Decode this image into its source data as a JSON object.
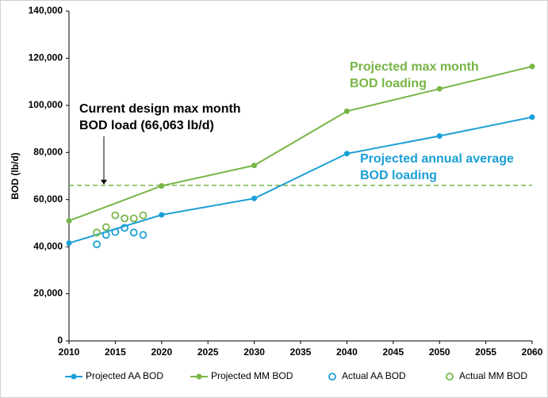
{
  "chart_data": {
    "type": "line",
    "y_label": "BOD (lb/d)",
    "xlim": [
      2010,
      2060
    ],
    "xticks": [
      2010,
      2015,
      2020,
      2025,
      2030,
      2035,
      2040,
      2045,
      2050,
      2055,
      2060
    ],
    "ylim": [
      0,
      140000
    ],
    "yticks": [
      0,
      {
        "value": 20000,
        "label": "20,000"
      },
      {
        "value": 40000,
        "label": "40,000"
      },
      {
        "value": 60000,
        "label": "60,000"
      },
      {
        "value": 80000,
        "label": "80,000"
      },
      {
        "value": 100000,
        "label": "100,000"
      },
      {
        "value": 120000,
        "label": "120,000"
      },
      {
        "value": 140000,
        "label": "140,000"
      }
    ],
    "series": [
      {
        "name": "Projected AA BOD",
        "color": "#1b9fd6",
        "style": "line",
        "x": [
          2010,
          2020,
          2030,
          2040,
          2050,
          2060
        ],
        "values": [
          41500,
          53500,
          60500,
          79500,
          87000,
          95000
        ]
      },
      {
        "name": "Projected MM BOD",
        "color": "#77b546",
        "style": "line",
        "x": [
          2010,
          2020,
          2030,
          2040,
          2050,
          2060
        ],
        "values": [
          51000,
          65800,
          74500,
          97500,
          107000,
          116500
        ]
      },
      {
        "name": "Actual AA BOD",
        "color": "#1b9fd6",
        "style": "hollow",
        "x": [
          2013,
          2014,
          2015,
          2016,
          2017,
          2018
        ],
        "values": [
          41000,
          45000,
          46200,
          48000,
          46000,
          45000
        ]
      },
      {
        "name": "Actual MM BOD",
        "color": "#77b546",
        "style": "hollow",
        "x": [
          2013,
          2014,
          2015,
          2016,
          2017,
          2018
        ],
        "values": [
          46000,
          48300,
          53300,
          52000,
          52000,
          53300
        ]
      }
    ],
    "reference_line": {
      "value": 66063,
      "color": "#77b546"
    },
    "annotations": [
      {
        "lines": [
          "Current design max month",
          "BOD load (66,063 lb/d)"
        ],
        "color": "#000000"
      },
      {
        "lines": [
          "Projected max month",
          "BOD loading"
        ],
        "color": "#77b546"
      },
      {
        "lines": [
          "Projected annual average",
          "BOD loading"
        ],
        "color": "#1b9fd6"
      }
    ]
  }
}
